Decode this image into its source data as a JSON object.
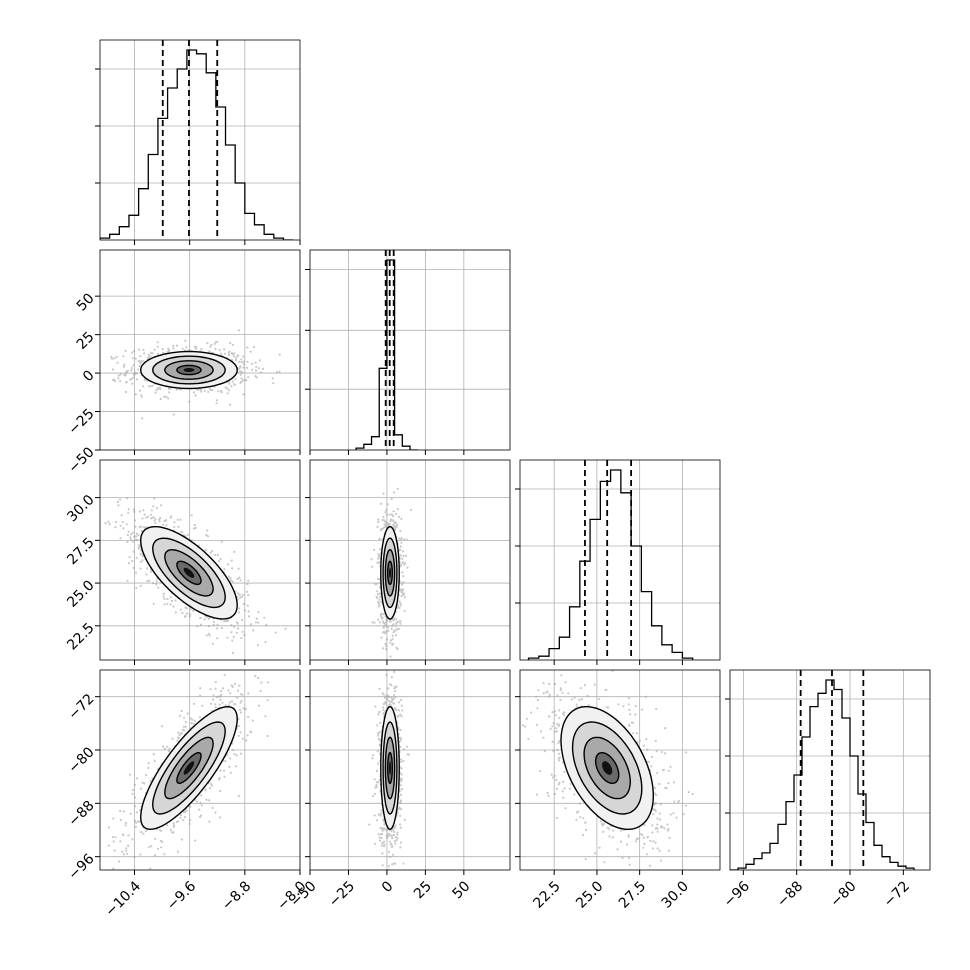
{
  "chart_data": {
    "type": "corner",
    "grid": true,
    "colors": {
      "line": "#000000",
      "grid": "#b0b0b0",
      "scatter": "#9a9a9a"
    },
    "params": [
      {
        "range": [
          -10.9,
          -8.0
        ],
        "ticks": [
          -10.4,
          -9.6,
          -8.8,
          -8.0
        ],
        "tick_labels": [
          "−10.4",
          "−9.6",
          "−8.8",
          "−8.0"
        ],
        "quantiles": [
          -9.99,
          -9.61,
          -9.2
        ],
        "hist_edges": [
          -10.9,
          -10.76,
          -10.62,
          -10.48,
          -10.34,
          -10.2,
          -10.06,
          -9.92,
          -9.78,
          -9.64,
          -9.5,
          -9.36,
          -9.22,
          -9.08,
          -8.94,
          -8.8,
          -8.66,
          -8.52,
          -8.38,
          -8.24,
          -8.1
        ],
        "hist_counts": [
          0.01,
          0.03,
          0.07,
          0.13,
          0.27,
          0.45,
          0.64,
          0.8,
          0.9,
          1.0,
          0.98,
          0.88,
          0.7,
          0.5,
          0.3,
          0.14,
          0.08,
          0.03,
          0.01,
          0.0
        ],
        "hist_ticks": [
          0.3,
          0.6,
          0.9
        ]
      },
      {
        "range": [
          -50,
          80
        ],
        "ticks": [
          -50,
          -25,
          0,
          25,
          50
        ],
        "tick_labels": [
          "−50",
          "−25",
          "0",
          "25",
          "50"
        ],
        "quantiles": [
          -0.8,
          1.8,
          4.4
        ],
        "hist_edges": [
          -20,
          -15,
          -10,
          -5,
          0,
          5,
          10,
          15,
          20
        ],
        "hist_counts": [
          0.01,
          0.03,
          0.07,
          0.43,
          1.0,
          0.08,
          0.02,
          0.0
        ],
        "hist_ticks": [
          0.32,
          0.63,
          0.95
        ]
      },
      {
        "range": [
          20.5,
          32.2
        ],
        "ticks": [
          22.5,
          25.0,
          27.5,
          30.0
        ],
        "tick_labels": [
          "22.5",
          "25.0",
          "27.5",
          "30.0"
        ],
        "quantiles": [
          24.3,
          25.6,
          27.0
        ],
        "hist_edges": [
          21.0,
          21.6,
          22.2,
          22.8,
          23.4,
          24.0,
          24.6,
          25.2,
          25.8,
          26.4,
          27.0,
          27.6,
          28.2,
          28.8,
          29.4,
          30.0,
          30.6
        ],
        "hist_counts": [
          0.01,
          0.02,
          0.06,
          0.12,
          0.28,
          0.52,
          0.74,
          0.94,
          1.0,
          0.88,
          0.6,
          0.36,
          0.18,
          0.08,
          0.04,
          0.01
        ],
        "hist_ticks": [
          0.3,
          0.6,
          0.9
        ]
      },
      {
        "range": [
          -98,
          -68
        ],
        "ticks": [
          -96,
          -88,
          -80,
          -72
        ],
        "tick_labels": [
          "−96",
          "−88",
          "−80",
          "−72"
        ],
        "quantiles": [
          -87.4,
          -82.7,
          -78.0
        ],
        "hist_edges": [
          -98.0,
          -96.8,
          -95.6,
          -94.4,
          -93.2,
          -92.0,
          -90.8,
          -89.6,
          -88.4,
          -87.2,
          -86.0,
          -84.8,
          -83.6,
          -82.4,
          -81.2,
          -80.0,
          -78.8,
          -77.6,
          -76.4,
          -75.2,
          -74.0,
          -72.8,
          -71.6,
          -70.4
        ],
        "hist_counts": [
          0.0,
          0.01,
          0.03,
          0.06,
          0.09,
          0.14,
          0.24,
          0.36,
          0.5,
          0.7,
          0.86,
          0.93,
          1.0,
          0.95,
          0.8,
          0.6,
          0.4,
          0.25,
          0.13,
          0.07,
          0.04,
          0.02,
          0.01
        ],
        "hist_ticks": [
          0.3,
          0.6,
          0.9
        ]
      }
    ],
    "pairs": [
      {
        "row": 1,
        "col": 0,
        "mean": [
          -9.61,
          2.0
        ],
        "sd": [
          0.35,
          6.0
        ],
        "corr": 0.0
      },
      {
        "row": 2,
        "col": 0,
        "mean": [
          -9.61,
          25.6
        ],
        "sd": [
          0.35,
          1.35
        ],
        "corr": -0.7
      },
      {
        "row": 2,
        "col": 1,
        "mean": [
          2.0,
          25.6
        ],
        "sd": [
          3.0,
          1.35
        ],
        "corr": 0.0
      },
      {
        "row": 3,
        "col": 0,
        "mean": [
          -9.61,
          -82.7
        ],
        "sd": [
          0.35,
          4.6
        ],
        "corr": 0.8
      },
      {
        "row": 3,
        "col": 1,
        "mean": [
          2.0,
          -82.7
        ],
        "sd": [
          3.0,
          4.6
        ],
        "corr": 0.0
      },
      {
        "row": 3,
        "col": 2,
        "mean": [
          25.6,
          -82.7
        ],
        "sd": [
          1.35,
          4.6
        ],
        "corr": -0.45
      }
    ],
    "contour_sigmas": [
      0.5,
      1.0,
      1.5,
      2.0
    ]
  }
}
